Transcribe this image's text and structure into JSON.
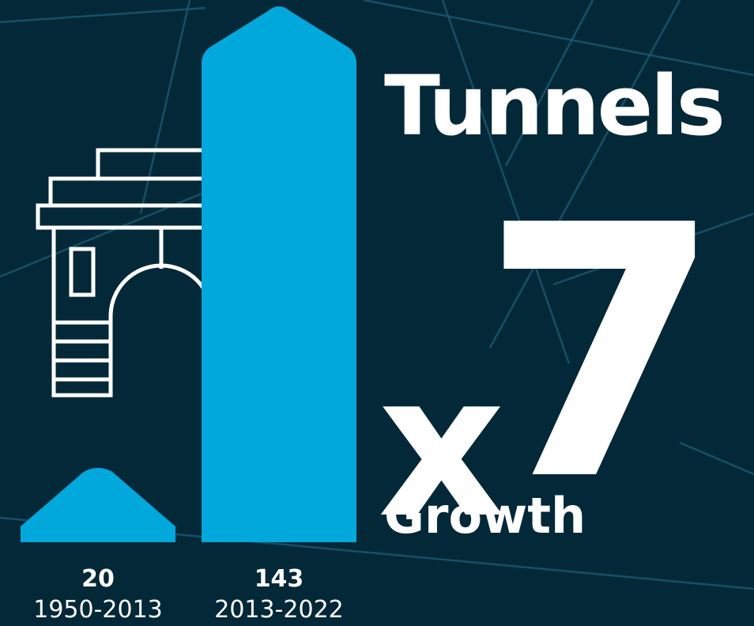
{
  "headline": {
    "title": "Tunnels",
    "multiplier_x": "x",
    "multiplier_value": "7",
    "subtitle": "Growth"
  },
  "colors": {
    "background": "#032838",
    "accent": "#00A8DB",
    "text": "#FFFFFF",
    "map_lines": "#1B5A72"
  },
  "icon": "tunnel-arch-icon",
  "chart_data": {
    "type": "bar",
    "categories": [
      "1950-2013",
      "2013-2022"
    ],
    "values": [
      20,
      143
    ],
    "value_labels": [
      "20",
      "143"
    ],
    "ylim": [
      0,
      160
    ]
  }
}
